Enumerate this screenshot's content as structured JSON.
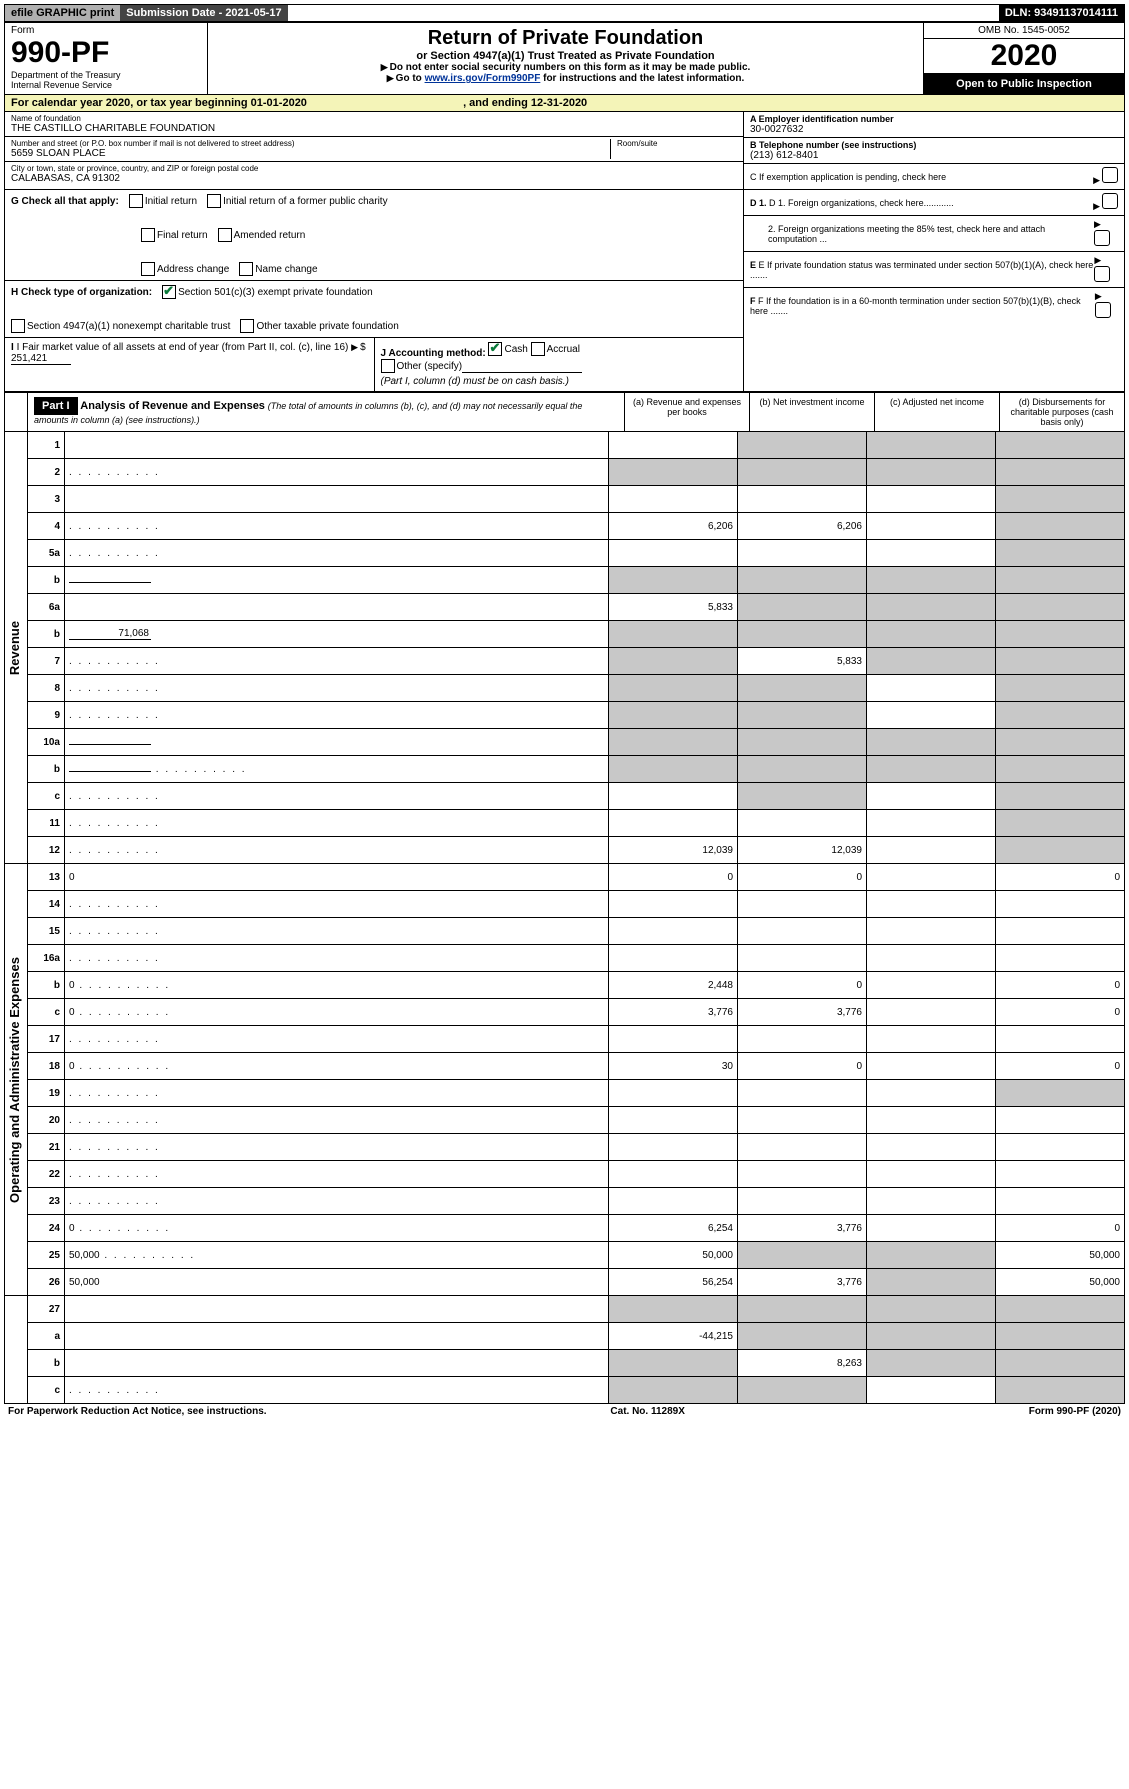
{
  "header": {
    "efile": "efile GRAPHIC print",
    "submission": "Submission Date - 2021-05-17",
    "dln": "DLN: 93491137014111"
  },
  "form": {
    "label": "Form",
    "number": "990-PF",
    "dept1": "Department of the Treasury",
    "dept2": "Internal Revenue Service",
    "title": "Return of Private Foundation",
    "subtitle": "or Section 4947(a)(1) Trust Treated as Private Foundation",
    "instr1": "Do not enter social security numbers on this form as it may be made public.",
    "instr2_pre": "Go to ",
    "instr2_link": "www.irs.gov/Form990PF",
    "instr2_post": " for instructions and the latest information.",
    "omb": "OMB No. 1545-0052",
    "year": "2020",
    "open": "Open to Public Inspection"
  },
  "calendar": {
    "text_pre": "For calendar year 2020, or tax year beginning ",
    "begin": "01-01-2020",
    "text_mid": ", and ending ",
    "end": "12-31-2020"
  },
  "entity": {
    "name_label": "Name of foundation",
    "name": "THE CASTILLO CHARITABLE FOUNDATION",
    "addr_label": "Number and street (or P.O. box number if mail is not delivered to street address)",
    "addr": "5659 SLOAN PLACE",
    "room_label": "Room/suite",
    "room": "",
    "city_label": "City or town, state or province, country, and ZIP or foreign postal code",
    "city": "CALABASAS, CA  91302",
    "ein_label": "A Employer identification number",
    "ein": "30-0027632",
    "tel_label": "B Telephone number (see instructions)",
    "tel": "(213) 612-8401",
    "c_label": "C If exemption application is pending, check here"
  },
  "checks": {
    "g_label": "G Check all that apply:",
    "g_items": [
      "Initial return",
      "Initial return of a former public charity",
      "Final return",
      "Amended return",
      "Address change",
      "Name change"
    ],
    "h_label": "H Check type of organization:",
    "h_501": "Section 501(c)(3) exempt private foundation",
    "h_4947": "Section 4947(a)(1) nonexempt charitable trust",
    "h_other": "Other taxable private foundation",
    "i_label": "I Fair market value of all assets at end of year (from Part II, col. (c), line 16) ",
    "i_prefix": "$",
    "i_val": "251,421",
    "j_label": "J Accounting method:",
    "j_cash": "Cash",
    "j_accrual": "Accrual",
    "j_other": "Other (specify)",
    "j_note": "(Part I, column (d) must be on cash basis.)",
    "d1": "D 1. Foreign organizations, check here............",
    "d2": "2. Foreign organizations meeting the 85% test, check here and attach computation ...",
    "e": "E If private foundation status was terminated under section 507(b)(1)(A), check here .......",
    "f": "F If the foundation is in a 60-month termination under section 507(b)(1)(B), check here ......."
  },
  "part1": {
    "label": "Part I",
    "title": "Analysis of Revenue and Expenses",
    "sub": "(The total of amounts in columns (b), (c), and (d) may not necessarily equal the amounts in column (a) (see instructions).)",
    "col_a": "(a) Revenue and expenses per books",
    "col_b": "(b) Net investment income",
    "col_c": "(c) Adjusted net income",
    "col_d": "(d) Disbursements for charitable purposes (cash basis only)"
  },
  "sections": {
    "revenue": "Revenue",
    "expenses": "Operating and Administrative Expenses"
  },
  "rows": [
    {
      "n": "1",
      "d": "",
      "a": "",
      "b": "",
      "c": "",
      "sb": true,
      "sc": true,
      "sd": true
    },
    {
      "n": "2",
      "d": "",
      "a": "",
      "b": "",
      "c": "",
      "sa": true,
      "sb": true,
      "sc": true,
      "sd": true,
      "dots": true
    },
    {
      "n": "3",
      "d": "",
      "a": "",
      "b": "",
      "c": "",
      "sd": true
    },
    {
      "n": "4",
      "d": "",
      "a": "6,206",
      "b": "6,206",
      "c": "",
      "sd": true,
      "dots": true
    },
    {
      "n": "5a",
      "d": "",
      "a": "",
      "b": "",
      "c": "",
      "sd": true,
      "dots": true
    },
    {
      "n": "b",
      "d": "",
      "a": "",
      "b": "",
      "c": "",
      "sa": true,
      "sb": true,
      "sc": true,
      "sd": true,
      "inline": true
    },
    {
      "n": "6a",
      "d": "",
      "a": "5,833",
      "b": "",
      "c": "",
      "sb": true,
      "sc": true,
      "sd": true
    },
    {
      "n": "b",
      "d": "",
      "a": "",
      "b": "",
      "c": "",
      "sa": true,
      "sb": true,
      "sc": true,
      "sd": true,
      "inline": true,
      "ival": "71,068"
    },
    {
      "n": "7",
      "d": "",
      "a": "",
      "b": "5,833",
      "c": "",
      "sa": true,
      "sc": true,
      "sd": true,
      "dots": true
    },
    {
      "n": "8",
      "d": "",
      "a": "",
      "b": "",
      "c": "",
      "sa": true,
      "sb": true,
      "sd": true,
      "dots": true
    },
    {
      "n": "9",
      "d": "",
      "a": "",
      "b": "",
      "c": "",
      "sa": true,
      "sb": true,
      "sd": true,
      "dots": true
    },
    {
      "n": "10a",
      "d": "",
      "a": "",
      "b": "",
      "c": "",
      "sa": true,
      "sb": true,
      "sc": true,
      "sd": true,
      "inline": true
    },
    {
      "n": "b",
      "d": "",
      "a": "",
      "b": "",
      "c": "",
      "sa": true,
      "sb": true,
      "sc": true,
      "sd": true,
      "inline": true,
      "dots": true
    },
    {
      "n": "c",
      "d": "",
      "a": "",
      "b": "",
      "c": "",
      "sb": true,
      "sd": true,
      "dots": true
    },
    {
      "n": "11",
      "d": "",
      "a": "",
      "b": "",
      "c": "",
      "sd": true,
      "dots": true
    },
    {
      "n": "12",
      "d": "",
      "a": "12,039",
      "b": "12,039",
      "c": "",
      "sd": true,
      "dots": true
    }
  ],
  "exp_rows": [
    {
      "n": "13",
      "d": "0",
      "a": "0",
      "b": "0",
      "c": ""
    },
    {
      "n": "14",
      "d": "",
      "a": "",
      "b": "",
      "c": "",
      "dots": true
    },
    {
      "n": "15",
      "d": "",
      "a": "",
      "b": "",
      "c": "",
      "dots": true
    },
    {
      "n": "16a",
      "d": "",
      "a": "",
      "b": "",
      "c": "",
      "dots": true
    },
    {
      "n": "b",
      "d": "0",
      "a": "2,448",
      "b": "0",
      "c": "",
      "dots": true
    },
    {
      "n": "c",
      "d": "0",
      "a": "3,776",
      "b": "3,776",
      "c": "",
      "dots": true
    },
    {
      "n": "17",
      "d": "",
      "a": "",
      "b": "",
      "c": "",
      "dots": true
    },
    {
      "n": "18",
      "d": "0",
      "a": "30",
      "b": "0",
      "c": "",
      "dots": true
    },
    {
      "n": "19",
      "d": "",
      "a": "",
      "b": "",
      "c": "",
      "sd": true,
      "dots": true
    },
    {
      "n": "20",
      "d": "",
      "a": "",
      "b": "",
      "c": "",
      "dots": true
    },
    {
      "n": "21",
      "d": "",
      "a": "",
      "b": "",
      "c": "",
      "dots": true
    },
    {
      "n": "22",
      "d": "",
      "a": "",
      "b": "",
      "c": "",
      "dots": true
    },
    {
      "n": "23",
      "d": "",
      "a": "",
      "b": "",
      "c": "",
      "dots": true
    },
    {
      "n": "24",
      "d": "0",
      "a": "6,254",
      "b": "3,776",
      "c": "",
      "dots": true
    },
    {
      "n": "25",
      "d": "50,000",
      "a": "50,000",
      "b": "",
      "c": "",
      "sb": true,
      "sc": true,
      "dots": true
    },
    {
      "n": "26",
      "d": "50,000",
      "a": "56,254",
      "b": "3,776",
      "c": "",
      "sc": true
    }
  ],
  "sub_rows": [
    {
      "n": "27",
      "d": "",
      "a": "",
      "b": "",
      "c": "",
      "sa": true,
      "sb": true,
      "sc": true,
      "sd": true
    },
    {
      "n": "a",
      "d": "",
      "a": "-44,215",
      "b": "",
      "c": "",
      "sb": true,
      "sc": true,
      "sd": true
    },
    {
      "n": "b",
      "d": "",
      "a": "",
      "b": "8,263",
      "c": "",
      "sa": true,
      "sc": true,
      "sd": true
    },
    {
      "n": "c",
      "d": "",
      "a": "",
      "b": "",
      "c": "",
      "sa": true,
      "sb": true,
      "sd": true,
      "dots": true
    }
  ],
  "footer": {
    "left": "For Paperwork Reduction Act Notice, see instructions.",
    "mid": "Cat. No. 11289X",
    "right": "Form 990-PF (2020)"
  }
}
